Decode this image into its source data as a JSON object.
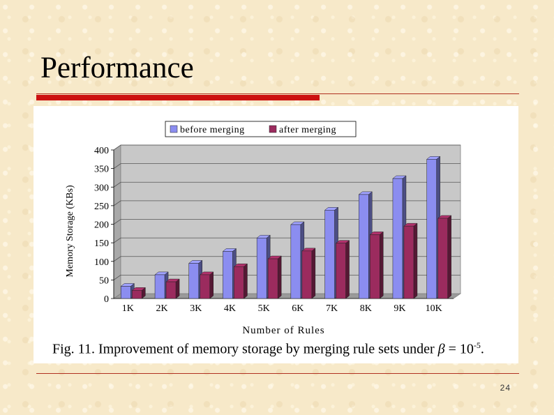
{
  "slide": {
    "title": "Performance",
    "page_number": "24",
    "caption": {
      "prefix": "Fig. 11. Improvement of memory storage by merging rule sets under ",
      "beta": "β",
      "equals": " = 10",
      "exponent": "-5",
      "suffix": "."
    }
  },
  "chart_data": {
    "type": "bar",
    "categories": [
      "1K",
      "2K",
      "3K",
      "4K",
      "5K",
      "6K",
      "7K",
      "8K",
      "9K",
      "10K"
    ],
    "series": [
      {
        "name": "before merging",
        "values": [
          33,
          64,
          95,
          127,
          163,
          199,
          238,
          280,
          323,
          375
        ],
        "color": "#8b8df0"
      },
      {
        "name": "after merging",
        "values": [
          22,
          45,
          64,
          86,
          107,
          128,
          149,
          172,
          195,
          216
        ],
        "color": "#9b2b5e"
      }
    ],
    "title": "",
    "xlabel": "Number of Rules",
    "ylabel": "Memory Storage (KBs)",
    "ylim": [
      0,
      400
    ],
    "yticks": [
      0,
      50,
      100,
      150,
      200,
      250,
      300,
      350,
      400
    ],
    "grid": true,
    "legend_position": "top-center",
    "plot_background": "#c8c8c8"
  }
}
